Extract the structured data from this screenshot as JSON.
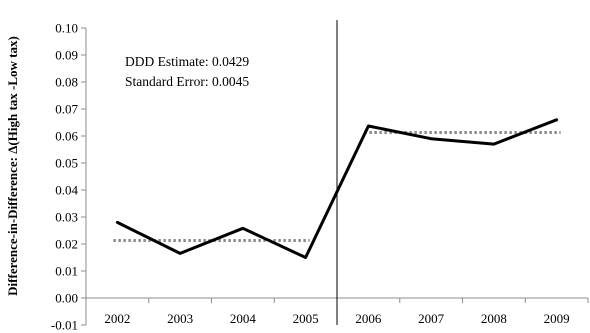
{
  "chart_data": {
    "type": "line",
    "title": "",
    "xlabel": "",
    "ylabel": "Difference-in-Difference: Δ(High tax -Low tax)",
    "x": [
      "2002",
      "2003",
      "2004",
      "2005",
      "2006",
      "2007",
      "2008",
      "2009"
    ],
    "ylim": [
      -0.01,
      0.1
    ],
    "yticks": [
      "-0.01",
      "0.00",
      "0.01",
      "0.02",
      "0.03",
      "0.04",
      "0.05",
      "0.06",
      "0.07",
      "0.08",
      "0.09",
      "0.10"
    ],
    "grid": false,
    "legend": "none",
    "series": [
      {
        "values": [
          0.028,
          0.0165,
          0.0258,
          0.015,
          0.0637,
          0.059,
          0.057,
          0.066
        ],
        "color": "#000000",
        "style": "solid"
      }
    ],
    "reference_lines": [
      {
        "x_from": "2002",
        "x_to": "2005",
        "y": 0.0213,
        "color": "#8c8c8c",
        "style": "dotted"
      },
      {
        "x_from": "2006",
        "x_to": "2009",
        "y": 0.0613,
        "color": "#8c8c8c",
        "style": "dotted"
      }
    ],
    "vertical_line": {
      "between": [
        "2005",
        "2006"
      ],
      "color": "#000000"
    },
    "annotations": [
      "DDD Estimate: 0.0429",
      "Standard Error: 0.0045"
    ]
  }
}
